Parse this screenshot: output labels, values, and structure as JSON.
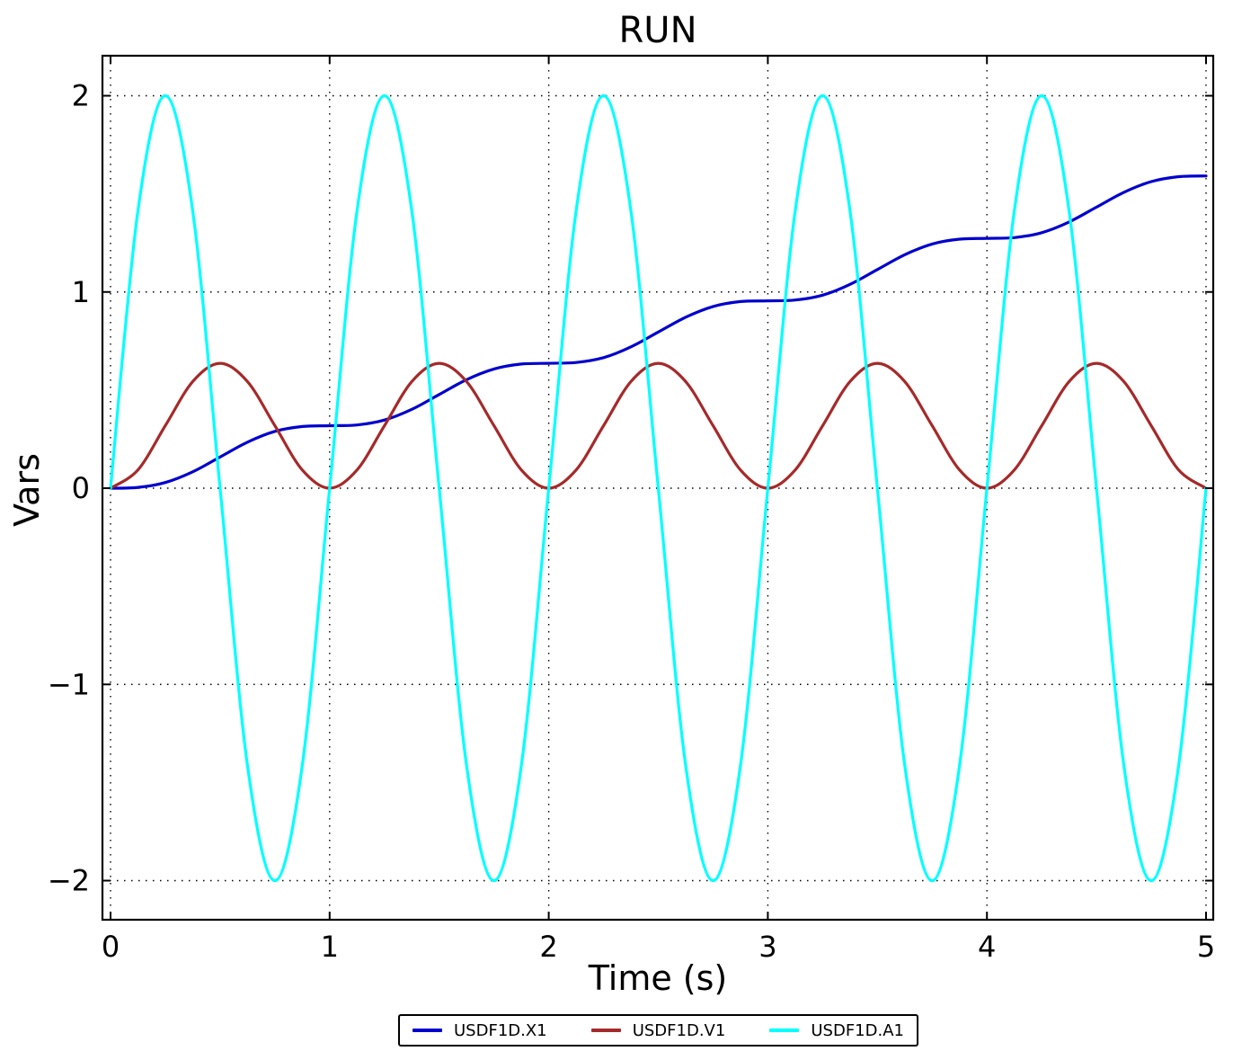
{
  "chart_data": {
    "type": "line",
    "title": "RUN",
    "xlabel": "Time (s)",
    "ylabel": "Vars",
    "xlim": [
      -0.037,
      5.033
    ],
    "ylim": [
      -2.2,
      2.2
    ],
    "x_ticks": [
      0,
      1,
      2,
      3,
      4,
      5
    ],
    "y_ticks": [
      -2,
      -1,
      0,
      1,
      2
    ],
    "grid": true,
    "grid_style": "dotted",
    "legend_position": "bottom-center",
    "x": [
      0,
      0.125,
      0.25,
      0.375,
      0.5,
      0.625,
      0.75,
      0.875,
      1,
      1.125,
      1.25,
      1.375,
      1.5,
      1.625,
      1.75,
      1.875,
      2,
      2.125,
      2.25,
      2.375,
      2.5,
      2.625,
      2.75,
      2.875,
      3,
      3.125,
      3.25,
      3.375,
      3.5,
      3.625,
      3.75,
      3.875,
      4,
      4.125,
      4.25,
      4.375,
      4.5,
      4.625,
      4.75,
      4.875,
      5
    ],
    "series": [
      {
        "name": "USDF1D.X1",
        "color": "#0000cd",
        "values": [
          0,
          0.004,
          0.0289,
          0.0835,
          0.1592,
          0.2348,
          0.2894,
          0.3143,
          0.3183,
          0.3223,
          0.3472,
          0.4018,
          0.4775,
          0.5531,
          0.6077,
          0.6327,
          0.6366,
          0.6406,
          0.6655,
          0.7201,
          0.7958,
          0.8714,
          0.926,
          0.951,
          0.9549,
          0.9589,
          0.9838,
          1.0385,
          1.1141,
          1.1897,
          1.2443,
          1.2693,
          1.2732,
          1.2772,
          1.3021,
          1.3568,
          1.4324,
          1.508,
          1.5626,
          1.5876,
          1.5915
        ]
      },
      {
        "name": "USDF1D.V1",
        "color": "#a52a2a",
        "values": [
          0,
          0.0932,
          0.3183,
          0.5434,
          0.6366,
          0.5434,
          0.3183,
          0.0932,
          0,
          0.0932,
          0.3183,
          0.5434,
          0.6366,
          0.5434,
          0.3183,
          0.0932,
          0,
          0.0932,
          0.3183,
          0.5434,
          0.6366,
          0.5434,
          0.3183,
          0.0932,
          0,
          0.0932,
          0.3183,
          0.5434,
          0.6366,
          0.5434,
          0.3183,
          0.0932,
          0,
          0.0932,
          0.3183,
          0.5434,
          0.6366,
          0.5434,
          0.3183,
          0.0932,
          0
        ]
      },
      {
        "name": "USDF1D.A1",
        "color": "#00ffff",
        "values": [
          0,
          1.4142,
          2,
          1.4142,
          0,
          -1.4142,
          -2,
          -1.4142,
          0,
          1.4142,
          2,
          1.4142,
          0,
          -1.4142,
          -2,
          -1.4142,
          0,
          1.4142,
          2,
          1.4142,
          0,
          -1.4142,
          -2,
          -1.4142,
          0,
          1.4142,
          2,
          1.4142,
          0,
          -1.4142,
          -2,
          -1.4142,
          0,
          1.4142,
          2,
          1.4142,
          0,
          -1.4142,
          -2,
          -1.4142,
          0
        ]
      }
    ]
  }
}
